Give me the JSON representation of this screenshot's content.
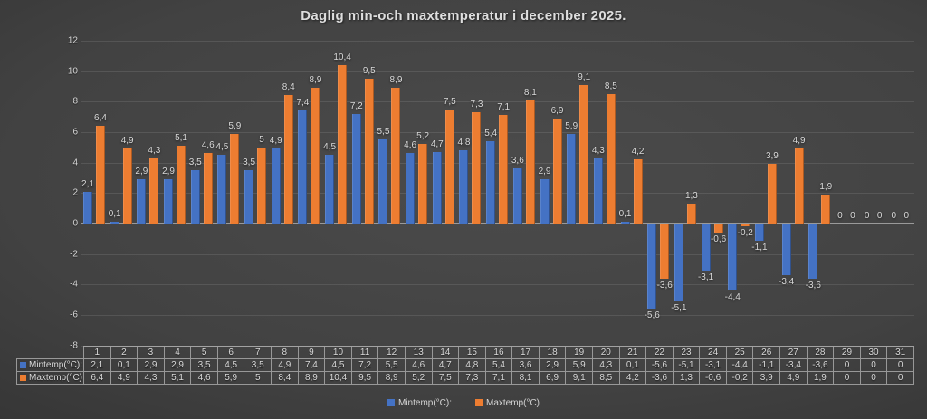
{
  "title": "Daglig min-och maxtemperatur i december 2025.",
  "legend": {
    "items": [
      {
        "label": "Mintemp(°C):",
        "color": "#4472C4"
      },
      {
        "label": "Maxtemp(°C)",
        "color": "#ED7D31"
      }
    ]
  },
  "y_axis": {
    "ticks": [
      "12",
      "10",
      "8",
      "6",
      "4",
      "2",
      "0",
      "-2",
      "-4",
      "-6",
      "-8"
    ]
  },
  "chart_data": {
    "type": "bar",
    "title": "Daglig min-och maxtemperatur i december 2025.",
    "categories": [
      "1",
      "2",
      "3",
      "4",
      "5",
      "6",
      "7",
      "8",
      "9",
      "10",
      "11",
      "12",
      "13",
      "14",
      "15",
      "16",
      "17",
      "18",
      "19",
      "20",
      "21",
      "22",
      "23",
      "24",
      "25",
      "26",
      "27",
      "28",
      "29",
      "30",
      "31"
    ],
    "series": [
      {
        "name": "Mintemp(°C):",
        "color": "#4472C4",
        "values": [
          "2,1",
          "0,1",
          "2,9",
          "2,9",
          "3,5",
          "4,5",
          "3,5",
          "4,9",
          "7,4",
          "4,5",
          "7,2",
          "5,5",
          "4,6",
          "4,7",
          "4,8",
          "5,4",
          "3,6",
          "2,9",
          "5,9",
          "4,3",
          "0,1",
          "-5,6",
          "-5,1",
          "-3,1",
          "-4,4",
          "-1,1",
          "-3,4",
          "-3,6",
          "0",
          "0",
          "0"
        ]
      },
      {
        "name": "Maxtemp(°C)",
        "color": "#ED7D31",
        "values": [
          "6,4",
          "4,9",
          "4,3",
          "5,1",
          "4,6",
          "5,9",
          "5",
          "8,4",
          "8,9",
          "10,4",
          "9,5",
          "8,9",
          "5,2",
          "7,5",
          "7,3",
          "7,1",
          "8,1",
          "6,9",
          "9,1",
          "8,5",
          "4,2",
          "-3,6",
          "1,3",
          "-0,6",
          "-0,2",
          "3,9",
          "4,9",
          "1,9",
          "0",
          "0",
          "0"
        ]
      }
    ],
    "ylim": [
      -8,
      12
    ],
    "ytick_step": 2,
    "grid": true,
    "legend_position": "bottom",
    "value_labels": "outside-end",
    "data_table_shown": true,
    "xlabel": "",
    "ylabel": ""
  },
  "data_table": {
    "corner_label": "",
    "row_headers": [
      "Mintemp(°C):",
      "Maxtemp(°C)"
    ]
  },
  "colors": {
    "min_series": "#4472C4",
    "max_series": "#ED7D31",
    "text": "#D9D9D9",
    "axis_line": "#9A9A9A",
    "gridline_alpha": "rgba(255,255,255,0.10)",
    "table_border": "#989898",
    "background_center": "#4B4B4B",
    "background_edge": "#272727"
  }
}
